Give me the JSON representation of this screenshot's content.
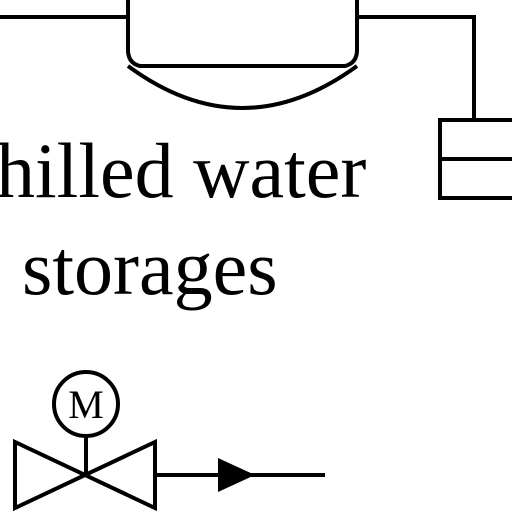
{
  "diagram": {
    "label_line1": "hilled water",
    "label_line2": "storages",
    "motor_symbol_text": "M"
  },
  "colors": {
    "stroke": "#000000",
    "background": "#ffffff"
  },
  "icons": [
    "storage-tank-icon",
    "motorized-valve-icon",
    "flow-arrow-icon",
    "equipment-box-icon"
  ]
}
